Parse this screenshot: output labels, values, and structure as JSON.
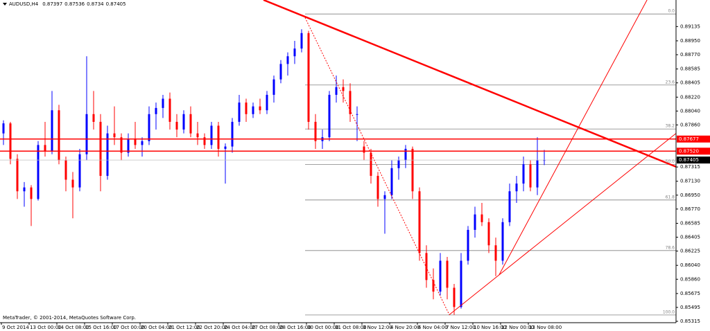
{
  "chart_data": {
    "type": "candlestick",
    "title": "AUDUSD,H4",
    "header_values": [
      0.87397,
      0.87536,
      0.8734,
      0.87405
    ],
    "footer": "MetaTrader, © 2001-2014, MetaQuotes Software Corp.",
    "up_color": "#0000ff",
    "down_color": "#ff0000",
    "candles": [
      [
        0.8775,
        0.8792,
        0.876,
        0.8788
      ],
      [
        0.8788,
        0.879,
        0.8735,
        0.8742
      ],
      [
        0.8742,
        0.8748,
        0.869,
        0.87
      ],
      [
        0.87,
        0.8712,
        0.868,
        0.8705
      ],
      [
        0.8705,
        0.8708,
        0.8655,
        0.869
      ],
      [
        0.869,
        0.8765,
        0.8688,
        0.876
      ],
      [
        0.876,
        0.879,
        0.8745,
        0.8752
      ],
      [
        0.8752,
        0.883,
        0.8748,
        0.8805
      ],
      [
        0.8805,
        0.8812,
        0.8735,
        0.874
      ],
      [
        0.874,
        0.8745,
        0.87,
        0.8715
      ],
      [
        0.8715,
        0.8725,
        0.8665,
        0.8705
      ],
      [
        0.8705,
        0.8755,
        0.87,
        0.8748
      ],
      [
        0.8748,
        0.8875,
        0.874,
        0.88
      ],
      [
        0.88,
        0.883,
        0.878,
        0.879
      ],
      [
        0.879,
        0.88,
        0.87,
        0.872
      ],
      [
        0.872,
        0.8785,
        0.8715,
        0.8775
      ],
      [
        0.8775,
        0.881,
        0.876,
        0.877
      ],
      [
        0.877,
        0.8775,
        0.874,
        0.875
      ],
      [
        0.875,
        0.8775,
        0.8745,
        0.8768
      ],
      [
        0.8768,
        0.879,
        0.8755,
        0.876
      ],
      [
        0.876,
        0.877,
        0.8745,
        0.8765
      ],
      [
        0.8765,
        0.881,
        0.876,
        0.88
      ],
      [
        0.88,
        0.8815,
        0.878,
        0.8808
      ],
      [
        0.8808,
        0.8825,
        0.8795,
        0.882
      ],
      [
        0.882,
        0.8828,
        0.878,
        0.879
      ],
      [
        0.879,
        0.88,
        0.877,
        0.878
      ],
      [
        0.878,
        0.8805,
        0.8775,
        0.88
      ],
      [
        0.88,
        0.881,
        0.877,
        0.8775
      ],
      [
        0.8775,
        0.879,
        0.876,
        0.877
      ],
      [
        0.877,
        0.8775,
        0.8755,
        0.876
      ],
      [
        0.876,
        0.879,
        0.8755,
        0.8785
      ],
      [
        0.8785,
        0.879,
        0.8745,
        0.8755
      ],
      [
        0.8755,
        0.8762,
        0.871,
        0.8758
      ],
      [
        0.8758,
        0.8795,
        0.875,
        0.879
      ],
      [
        0.879,
        0.8825,
        0.8785,
        0.8815
      ],
      [
        0.8815,
        0.882,
        0.879,
        0.88
      ],
      [
        0.88,
        0.8815,
        0.8795,
        0.881
      ],
      [
        0.881,
        0.882,
        0.88,
        0.8805
      ],
      [
        0.8805,
        0.883,
        0.88,
        0.8825
      ],
      [
        0.8825,
        0.885,
        0.8815,
        0.8845
      ],
      [
        0.8845,
        0.887,
        0.884,
        0.8865
      ],
      [
        0.8865,
        0.888,
        0.885,
        0.8875
      ],
      [
        0.8875,
        0.8895,
        0.8865,
        0.8885
      ],
      [
        0.8885,
        0.891,
        0.888,
        0.8905
      ],
      [
        0.8905,
        0.8908,
        0.878,
        0.879
      ],
      [
        0.879,
        0.88,
        0.8755,
        0.8765
      ],
      [
        0.8765,
        0.878,
        0.8755,
        0.877
      ],
      [
        0.877,
        0.883,
        0.8765,
        0.8825
      ],
      [
        0.8825,
        0.885,
        0.8815,
        0.8835
      ],
      [
        0.8835,
        0.8845,
        0.8815,
        0.883
      ],
      [
        0.883,
        0.884,
        0.879,
        0.88
      ],
      [
        0.88,
        0.881,
        0.8765,
        0.88
      ],
      [
        0.8758,
        0.8765,
        0.874,
        0.875
      ],
      [
        0.875,
        0.8755,
        0.871,
        0.872
      ],
      [
        0.872,
        0.8725,
        0.868,
        0.869
      ],
      [
        0.869,
        0.87,
        0.8645,
        0.8695
      ],
      [
        0.8695,
        0.874,
        0.869,
        0.873
      ],
      [
        0.873,
        0.8745,
        0.8715,
        0.874
      ],
      [
        0.874,
        0.876,
        0.873,
        0.8755
      ],
      [
        0.8755,
        0.8758,
        0.869,
        0.87
      ],
      [
        0.87,
        0.8705,
        0.861,
        0.862
      ],
      [
        0.862,
        0.863,
        0.8575,
        0.8585
      ],
      [
        0.8585,
        0.86,
        0.856,
        0.857
      ],
      [
        0.857,
        0.862,
        0.8565,
        0.861
      ],
      [
        0.861,
        0.8615,
        0.856,
        0.8575
      ],
      [
        0.8575,
        0.858,
        0.854,
        0.855
      ],
      [
        0.855,
        0.862,
        0.8548,
        0.861
      ],
      [
        0.861,
        0.8655,
        0.8605,
        0.865
      ],
      [
        0.865,
        0.868,
        0.864,
        0.867
      ],
      [
        0.867,
        0.8685,
        0.8655,
        0.866
      ],
      [
        0.866,
        0.8665,
        0.862,
        0.863
      ],
      [
        0.863,
        0.864,
        0.859,
        0.861
      ],
      [
        0.861,
        0.8665,
        0.8605,
        0.866
      ],
      [
        0.866,
        0.871,
        0.8655,
        0.87
      ],
      [
        0.87,
        0.872,
        0.8685,
        0.871
      ],
      [
        0.871,
        0.8745,
        0.87,
        0.8735
      ],
      [
        0.8735,
        0.874,
        0.87,
        0.8705
      ],
      [
        0.8705,
        0.877,
        0.8695,
        0.874
      ],
      [
        0.87397,
        0.87536,
        0.8734,
        0.87405
      ]
    ],
    "x_labels": [
      "9 Oct 2014",
      "13 Oct 00:00",
      "14 Oct 08:00",
      "15 Oct 16:00",
      "17 Oct 00:00",
      "20 Oct 04:00",
      "21 Oct 12:00",
      "22 Oct 20:00",
      "24 Oct 04:00",
      "27 Oct 08:00",
      "28 Oct 16:00",
      "30 Oct 00:00",
      "31 Oct 08:00",
      "3 Nov 12:00",
      "4 Nov 20:00",
      "6 Nov 04:00",
      "7 Nov 12:00",
      "10 Nov 16:00",
      "12 Nov 00:00",
      "13 Nov 08:00"
    ],
    "ylim": [
      0.85297,
      0.89479
    ],
    "yticks": [
      0.89135,
      {
        "value": 0.8895,
        "label": "0.88950"
      },
      {
        "value": 0.8877,
        "label": "0.88770"
      },
      0.88585,
      0.88405,
      {
        "value": 0.8822,
        "label": "0.88220"
      },
      {
        "value": 0.8804,
        "label": "0.88040"
      },
      {
        "value": 0.8786,
        "label": "0.87860"
      },
      0.87315,
      {
        "value": 0.8713,
        "label": "0.87130"
      },
      {
        "value": 0.8695,
        "label": "0.86950"
      },
      {
        "value": 0.8677,
        "label": "0.86770"
      },
      0.86585,
      0.86405,
      0.86225,
      {
        "value": 0.8604,
        "label": "0.86040"
      },
      {
        "value": 0.8586,
        "label": "0.85860"
      },
      0.85675,
      0.85495,
      0.85315
    ],
    "levels": [
      {
        "value": 0.87677,
        "label": "0.87677",
        "color": "#ff0000"
      },
      {
        "value": 0.8752,
        "label": "0.87520",
        "color": "#ff0000"
      },
      {
        "value": 0.87405,
        "label": "0.87405",
        "color": "#000000"
      }
    ],
    "fibonacci": {
      "from_index": 43.5,
      "high": 0.89298,
      "low": 0.85397,
      "color": "#808080",
      "levels": [
        {
          "value": 0,
          "label": "0.0"
        },
        23.6,
        38.2,
        {
          "value": 50,
          "label": "50.0"
        },
        61.8,
        78.6,
        {
          "value": 100,
          "label": "100.0"
        }
      ]
    },
    "trend_lines": [
      {
        "x": [
          37.5,
          101.9
        ],
        "y": [
          0.8948,
          0.8714
        ],
        "color": "#ff0000",
        "width": 2.5
      },
      {
        "x": [
          64.3,
          97
        ],
        "y": [
          0.854,
          0.8775
        ],
        "color": "#ff0000",
        "width": 1
      },
      {
        "x": [
          71.5,
          93
        ],
        "y": [
          0.8592,
          0.8951
        ],
        "color": "#ff0000",
        "width": 1
      },
      {
        "x": [
          43.5,
          64.3
        ],
        "y": [
          0.8925,
          0.854
        ],
        "color": "#ff0000",
        "width": 1,
        "dashed": true
      }
    ]
  }
}
